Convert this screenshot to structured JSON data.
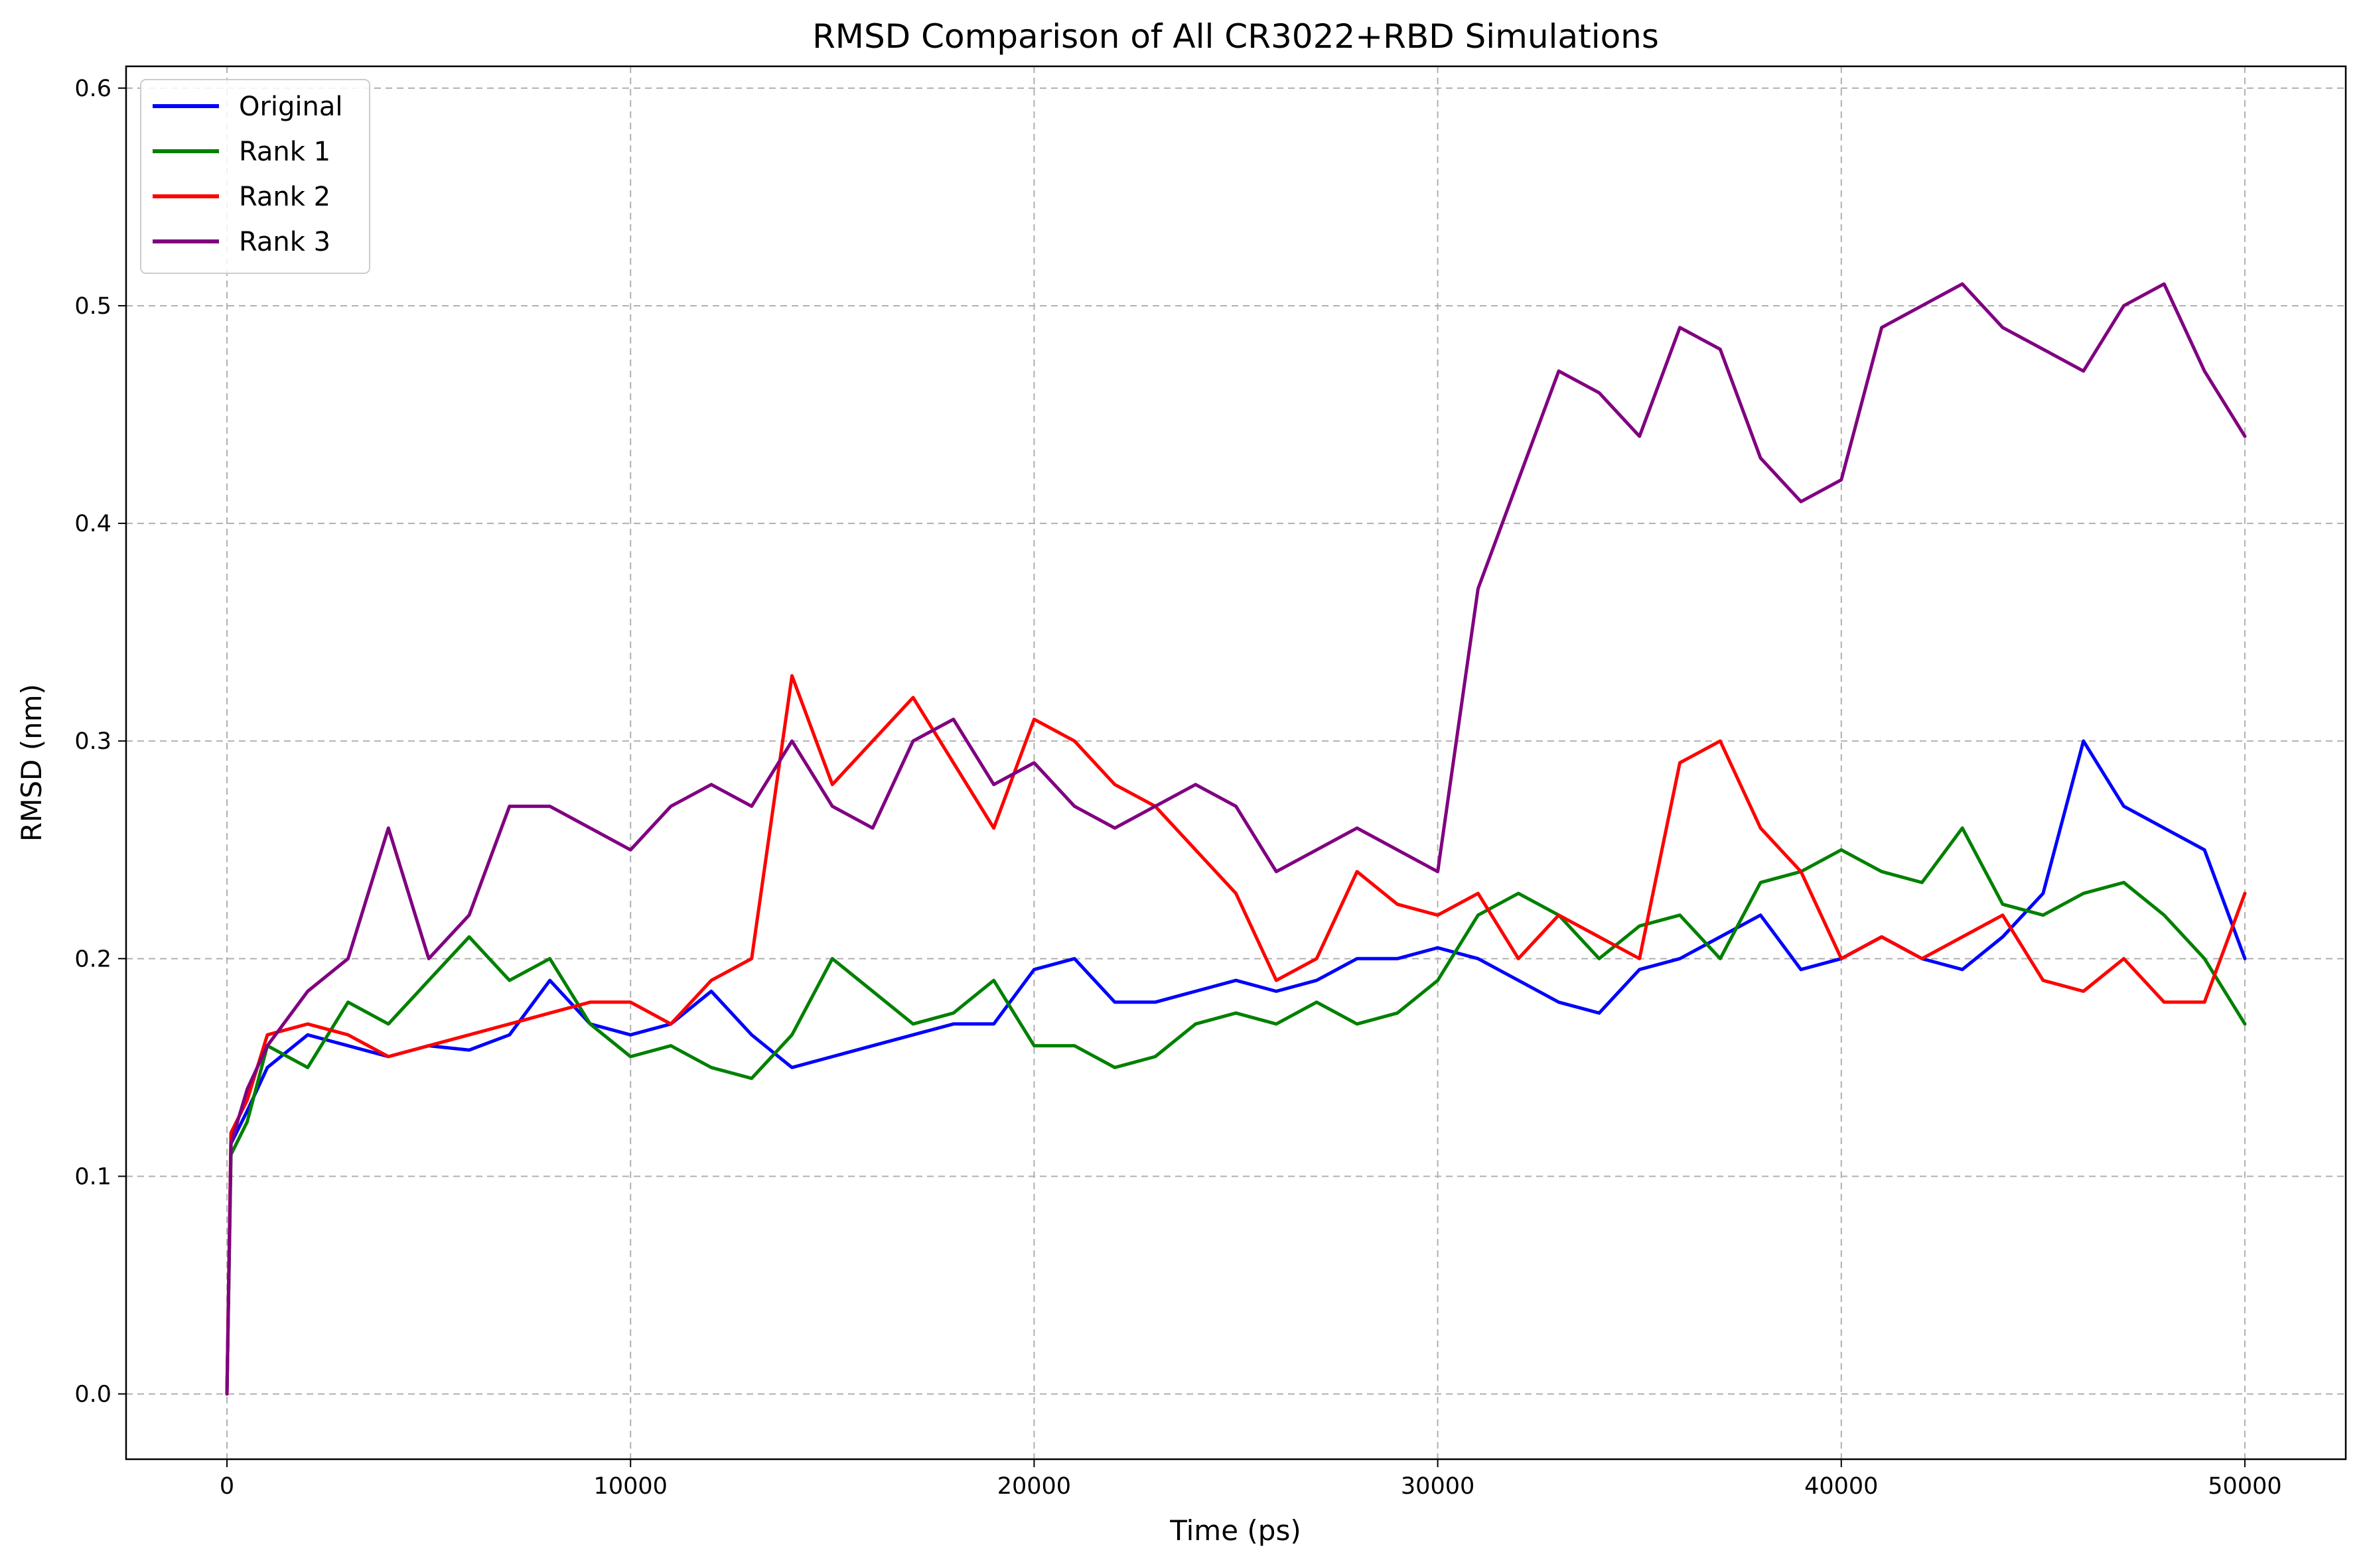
{
  "chart_data": {
    "type": "line",
    "title": "RMSD Comparison of All CR3022+RBD Simulations",
    "xlabel": "Time (ps)",
    "ylabel": "RMSD (nm)",
    "xlim": [
      -2500,
      52500
    ],
    "ylim": [
      -0.03,
      0.61
    ],
    "xticks": [
      0,
      10000,
      20000,
      30000,
      40000,
      50000
    ],
    "xtick_labels": [
      "0",
      "10000",
      "20000",
      "30000",
      "40000",
      "50000"
    ],
    "yticks": [
      0.0,
      0.1,
      0.2,
      0.3,
      0.4,
      0.5,
      0.6
    ],
    "ytick_labels": [
      "0.0",
      "0.1",
      "0.2",
      "0.3",
      "0.4",
      "0.5",
      "0.6"
    ],
    "grid": true,
    "legend_position": "top-left",
    "x": [
      0,
      100,
      500,
      1000,
      2000,
      3000,
      4000,
      5000,
      6000,
      7000,
      8000,
      9000,
      10000,
      11000,
      12000,
      13000,
      14000,
      15000,
      16000,
      17000,
      18000,
      19000,
      20000,
      21000,
      22000,
      23000,
      24000,
      25000,
      26000,
      27000,
      28000,
      29000,
      30000,
      31000,
      32000,
      33000,
      34000,
      35000,
      36000,
      37000,
      38000,
      39000,
      40000,
      41000,
      42000,
      43000,
      44000,
      45000,
      46000,
      47000,
      48000,
      49000,
      50000
    ],
    "series": [
      {
        "name": "Original",
        "color": "#0000ff",
        "values": [
          0.0,
          0.115,
          0.13,
          0.15,
          0.165,
          0.16,
          0.155,
          0.16,
          0.158,
          0.165,
          0.19,
          0.17,
          0.165,
          0.17,
          0.185,
          0.165,
          0.15,
          0.155,
          0.16,
          0.165,
          0.17,
          0.17,
          0.195,
          0.2,
          0.18,
          0.18,
          0.185,
          0.19,
          0.185,
          0.19,
          0.2,
          0.2,
          0.205,
          0.2,
          0.19,
          0.18,
          0.175,
          0.195,
          0.2,
          0.21,
          0.22,
          0.195,
          0.2,
          0.21,
          0.2,
          0.195,
          0.21,
          0.23,
          0.3,
          0.27,
          0.26,
          0.25,
          0.2
        ]
      },
      {
        "name": "Rank 1",
        "color": "#008000",
        "values": [
          0.0,
          0.11,
          0.125,
          0.16,
          0.15,
          0.18,
          0.17,
          0.19,
          0.21,
          0.19,
          0.2,
          0.17,
          0.155,
          0.16,
          0.15,
          0.145,
          0.165,
          0.2,
          0.185,
          0.17,
          0.175,
          0.19,
          0.16,
          0.16,
          0.15,
          0.155,
          0.17,
          0.175,
          0.17,
          0.18,
          0.17,
          0.175,
          0.19,
          0.22,
          0.23,
          0.22,
          0.2,
          0.215,
          0.22,
          0.2,
          0.235,
          0.24,
          0.25,
          0.24,
          0.235,
          0.26,
          0.225,
          0.22,
          0.23,
          0.235,
          0.22,
          0.2,
          0.17
        ]
      },
      {
        "name": "Rank 2",
        "color": "#ff0000",
        "values": [
          0.0,
          0.12,
          0.135,
          0.165,
          0.17,
          0.165,
          0.155,
          0.16,
          0.165,
          0.17,
          0.175,
          0.18,
          0.18,
          0.17,
          0.19,
          0.2,
          0.33,
          0.28,
          0.3,
          0.32,
          0.29,
          0.26,
          0.31,
          0.3,
          0.28,
          0.27,
          0.25,
          0.23,
          0.19,
          0.2,
          0.24,
          0.225,
          0.22,
          0.23,
          0.2,
          0.22,
          0.21,
          0.2,
          0.29,
          0.3,
          0.26,
          0.24,
          0.2,
          0.21,
          0.2,
          0.21,
          0.22,
          0.19,
          0.185,
          0.2,
          0.18,
          0.18,
          0.23
        ]
      },
      {
        "name": "Rank 3",
        "color": "#800080",
        "values": [
          0.0,
          0.115,
          0.14,
          0.16,
          0.185,
          0.2,
          0.26,
          0.2,
          0.22,
          0.27,
          0.27,
          0.26,
          0.25,
          0.27,
          0.28,
          0.27,
          0.3,
          0.27,
          0.26,
          0.3,
          0.31,
          0.28,
          0.29,
          0.27,
          0.26,
          0.27,
          0.28,
          0.27,
          0.24,
          0.25,
          0.26,
          0.25,
          0.24,
          0.37,
          0.42,
          0.47,
          0.46,
          0.44,
          0.49,
          0.48,
          0.43,
          0.41,
          0.42,
          0.49,
          0.5,
          0.51,
          0.49,
          0.48,
          0.47,
          0.5,
          0.51,
          0.47,
          0.44
        ]
      }
    ]
  }
}
